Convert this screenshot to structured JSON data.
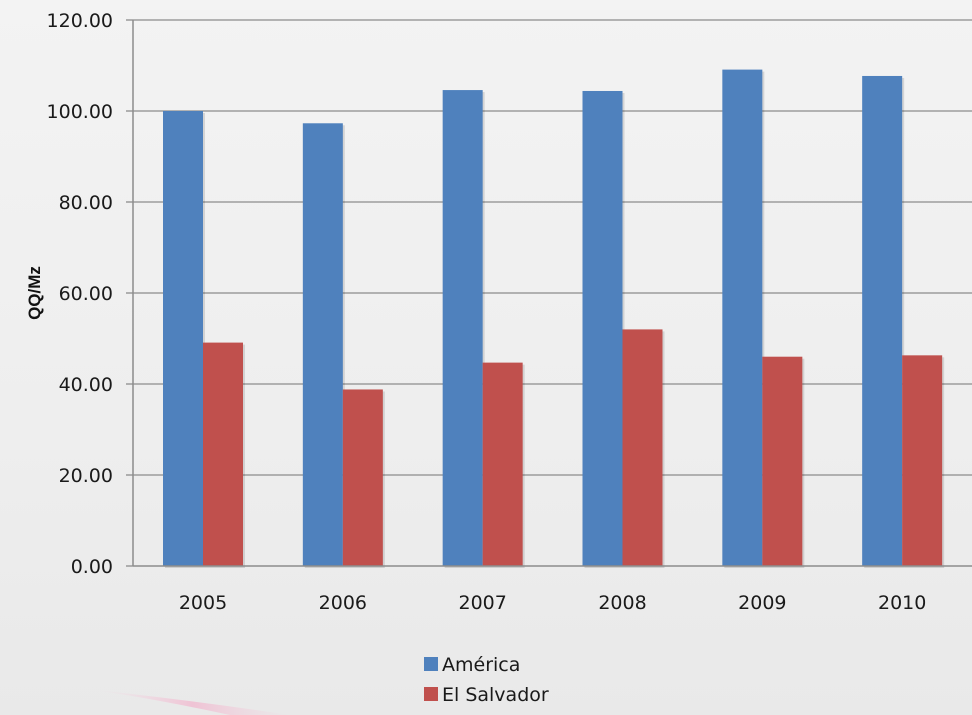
{
  "chart_data": {
    "type": "bar",
    "title": "",
    "xlabel": "",
    "ylabel": "QQ/Mz",
    "categories": [
      "2005",
      "2006",
      "2007",
      "2008",
      "2009",
      "2010"
    ],
    "series": [
      {
        "name": "América",
        "values": [
          100.0,
          97.3,
          104.6,
          104.4,
          109.1,
          107.7
        ],
        "color": "#4f81bd"
      },
      {
        "name": "El Salvador",
        "values": [
          49.1,
          38.8,
          44.7,
          52.0,
          46.0,
          46.3
        ],
        "color": "#c0504d"
      }
    ],
    "ylim": [
      0,
      120
    ],
    "yticks": [
      "0.00",
      "20.00",
      "40.00",
      "60.00",
      "80.00",
      "100.00",
      "120.00"
    ],
    "grid": true,
    "legend_position": "bottom"
  }
}
